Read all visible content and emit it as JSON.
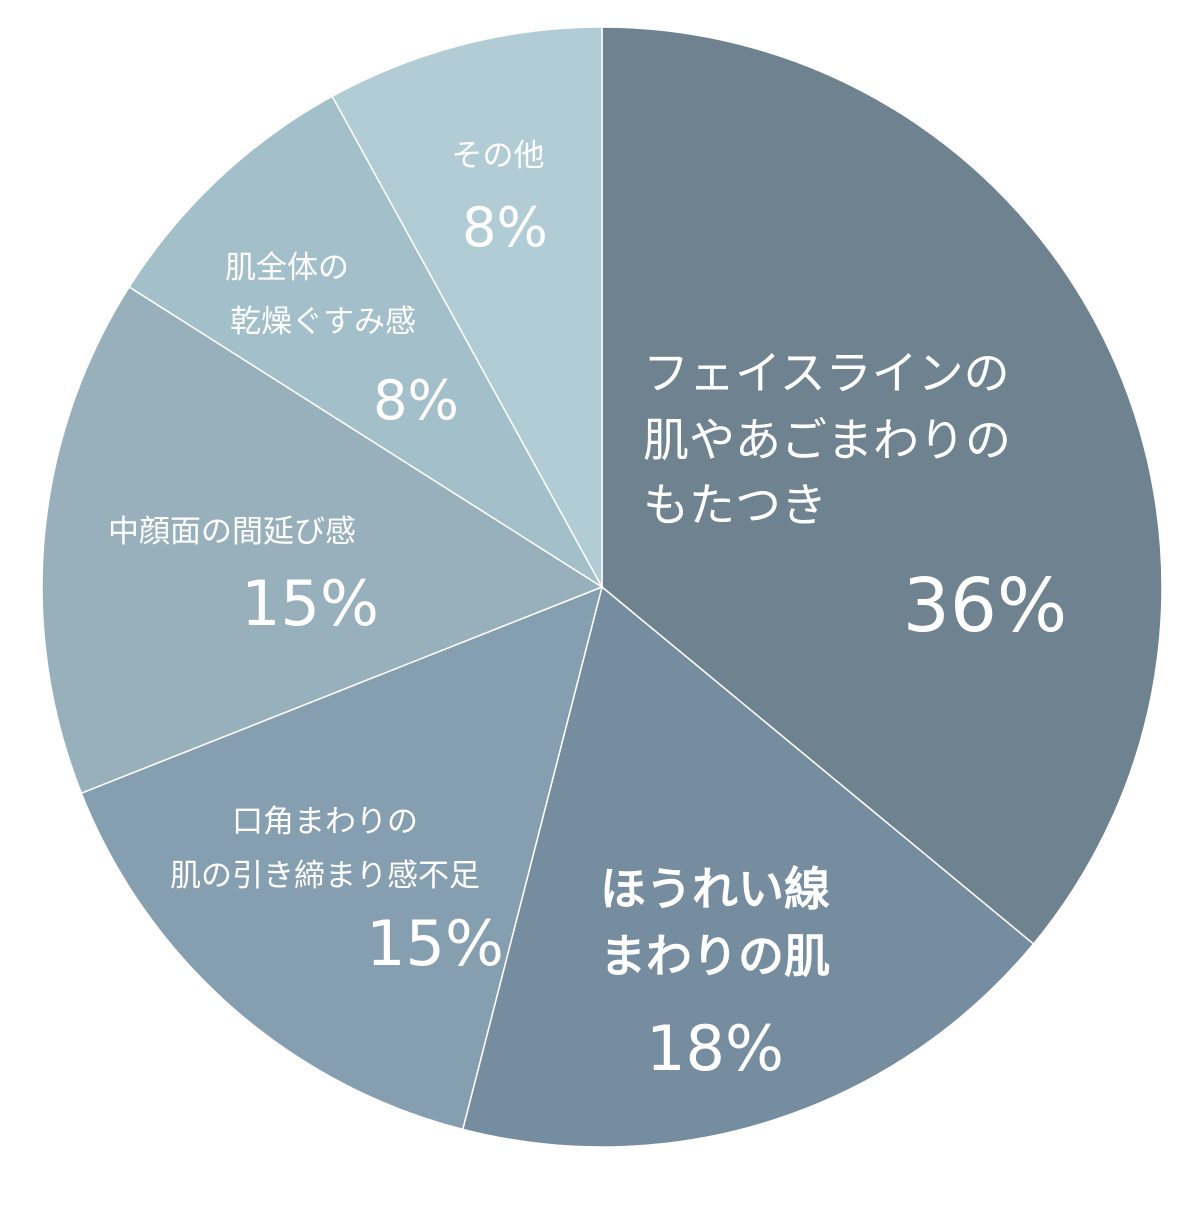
{
  "chart_data": {
    "type": "pie",
    "start": "12 o'clock, clockwise",
    "slices": [
      {
        "label": [
          "フェイスラインの",
          "肌やあごまわりの",
          "もたつき"
        ],
        "value": 36,
        "value_label": "36%",
        "color": "#6f8290"
      },
      {
        "label": [
          "ほうれい線",
          "まわりの肌"
        ],
        "value": 18,
        "value_label": "18%",
        "color": "#768d9f"
      },
      {
        "label": [
          "口角まわりの",
          "肌の引き締まり感不足"
        ],
        "value": 15,
        "value_label": "15%",
        "color": "#869fb0"
      },
      {
        "label": [
          "中顔面の間延び感"
        ],
        "value": 15,
        "value_label": "15%",
        "color": "#98b0bc"
      },
      {
        "label": [
          "肌全体の",
          "乾燥ぐすみ感"
        ],
        "value": 8,
        "value_label": "8%",
        "color": "#a3c0ca"
      },
      {
        "label": [
          "その他"
        ],
        "value": 8,
        "value_label": "8%",
        "color": "#b2ccd5"
      }
    ]
  }
}
